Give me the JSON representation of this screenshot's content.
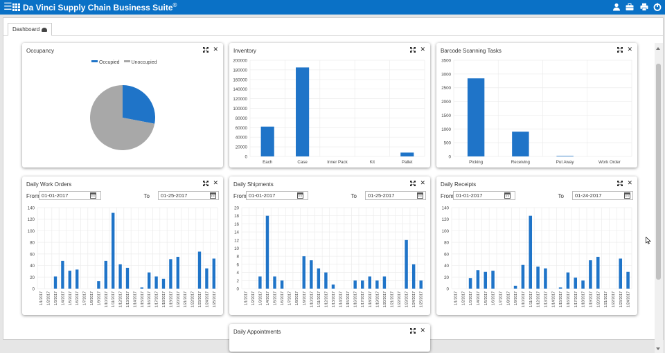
{
  "app": {
    "title": "Da Vinci Supply Chain Business Suite",
    "copyright": "©"
  },
  "topbar_icons": [
    "user-icon",
    "briefcase-icon",
    "print-icon",
    "power-icon"
  ],
  "tabs": [
    {
      "label": "Dashboard",
      "icon": "dashboard-icon"
    }
  ],
  "colors": {
    "accent": "#0a71c6",
    "bar": "#1f74c8",
    "grey": "#a8a8a8"
  },
  "panels": {
    "occupancy": {
      "title": "Occupancy"
    },
    "inventory": {
      "title": "Inventory"
    },
    "barcode": {
      "title": "Barcode Scanning Tasks"
    },
    "work_orders": {
      "title": "Daily Work Orders",
      "from_label": "From",
      "from": "01-01-2017",
      "to_label": "To",
      "to": "01-25-2017"
    },
    "shipments": {
      "title": "Daily Shipments",
      "from_label": "From",
      "from": "01-01-2017",
      "to_label": "To",
      "to": "01-25-2017"
    },
    "receipts": {
      "title": "Daily Receipts",
      "from_label": "From",
      "from": "01-01-2017",
      "to_label": "To",
      "to": "01-24-2017"
    },
    "appointments": {
      "title": "Daily Appointments"
    }
  },
  "chart_data": [
    {
      "id": "occupancy",
      "type": "pie",
      "labels": [
        "Occupied",
        "Unoccupied"
      ],
      "values": [
        28,
        72
      ],
      "colors": [
        "#1f74c8",
        "#a8a8a8"
      ],
      "legend": "top"
    },
    {
      "id": "inventory",
      "type": "bar",
      "categories": [
        "Each",
        "Case",
        "Inner Pack",
        "Kit",
        "Pallet"
      ],
      "values": [
        62000,
        185000,
        0,
        0,
        8000
      ],
      "ylim": [
        0,
        200000
      ],
      "yticks": [
        0,
        20000,
        40000,
        60000,
        80000,
        100000,
        120000,
        140000,
        160000,
        180000,
        200000
      ],
      "grid": true
    },
    {
      "id": "barcode",
      "type": "bar",
      "categories": [
        "Picking",
        "Receiving",
        "Put Away",
        "Work Order"
      ],
      "values": [
        2840,
        900,
        15,
        0
      ],
      "ylim": [
        0,
        3500
      ],
      "yticks": [
        0,
        500,
        1000,
        1500,
        2000,
        2500,
        3000,
        3500
      ],
      "grid": true
    },
    {
      "id": "work_orders",
      "type": "bar",
      "categories": [
        "1/1/2017",
        "1/2/2017",
        "1/3/2017",
        "1/4/2017",
        "1/5/2017",
        "1/6/2017",
        "1/7/2017",
        "1/8/2017",
        "1/9/2017",
        "1/10/2017",
        "1/11/2017",
        "1/12/2017",
        "1/13/2017",
        "1/14/2017",
        "1/15/2017",
        "1/16/2017",
        "1/17/2017",
        "1/18/2017",
        "1/19/2017",
        "1/20/2017",
        "1/21/2017",
        "1/22/2017",
        "1/23/2017",
        "1/24/2017",
        "1/25/2017"
      ],
      "values": [
        0,
        0,
        21,
        48,
        31,
        33,
        0,
        0,
        13,
        48,
        131,
        42,
        36,
        0,
        2,
        28,
        21,
        17,
        51,
        55,
        0,
        0,
        64,
        35,
        52
      ],
      "ylim": [
        0,
        140
      ],
      "yticks": [
        0,
        20,
        40,
        60,
        80,
        100,
        120,
        140
      ],
      "grid": true
    },
    {
      "id": "shipments",
      "type": "bar",
      "categories": [
        "1/1/2017",
        "1/2/2017",
        "1/3/2017",
        "1/4/2017",
        "1/5/2017",
        "1/6/2017",
        "1/7/2017",
        "1/8/2017",
        "1/9/2017",
        "1/10/2017",
        "1/11/2017",
        "1/12/2017",
        "1/13/2017",
        "1/14/2017",
        "1/15/2017",
        "1/16/2017",
        "1/17/2017",
        "1/18/2017",
        "1/19/2017",
        "1/20/2017",
        "1/21/2017",
        "1/22/2017",
        "1/23/2017",
        "1/24/2017",
        "1/25/2017"
      ],
      "values": [
        0,
        0,
        3,
        18,
        3,
        2,
        0,
        0,
        8,
        7,
        5,
        4,
        1,
        0,
        0,
        2,
        2,
        3,
        2,
        3,
        0,
        0,
        12,
        6,
        2
      ],
      "ylim": [
        0,
        20
      ],
      "yticks": [
        0,
        2,
        4,
        6,
        8,
        10,
        12,
        14,
        16,
        18,
        20
      ],
      "grid": true
    },
    {
      "id": "receipts",
      "type": "bar",
      "categories": [
        "1/1/2017",
        "1/2/2017",
        "1/3/2017",
        "1/4/2017",
        "1/5/2017",
        "1/6/2017",
        "1/7/2017",
        "1/8/2017",
        "1/9/2017",
        "1/10/2017",
        "1/11/2017",
        "1/12/2017",
        "1/13/2017",
        "1/14/2017",
        "1/15/2017",
        "1/16/2017",
        "1/17/2017",
        "1/18/2017",
        "1/19/2017",
        "1/20/2017",
        "1/21/2017",
        "1/22/2017",
        "1/23/2017",
        "1/24/2017"
      ],
      "values": [
        0,
        0,
        18,
        32,
        29,
        31,
        0,
        0,
        5,
        41,
        126,
        38,
        35,
        0,
        2,
        28,
        19,
        14,
        49,
        55,
        0,
        0,
        52,
        29
      ],
      "ylim": [
        0,
        140
      ],
      "yticks": [
        0,
        20,
        40,
        60,
        80,
        100,
        120,
        140
      ],
      "grid": true
    }
  ]
}
